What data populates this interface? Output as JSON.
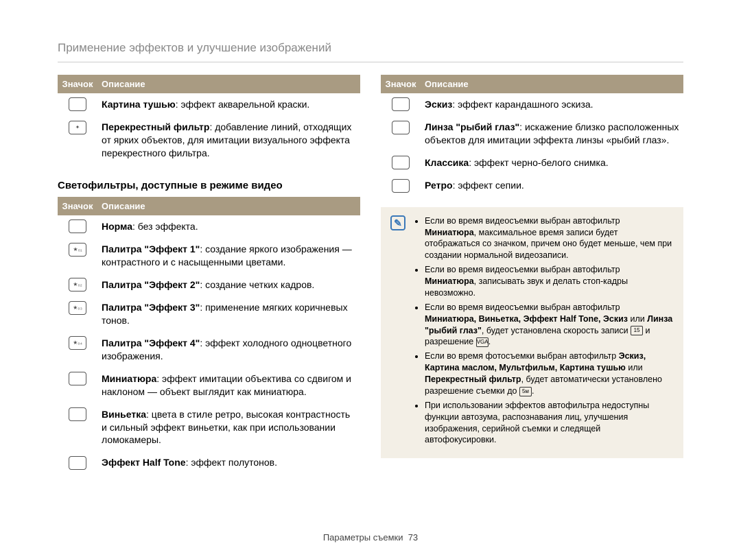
{
  "page_title": "Применение эффектов и улучшение изображений",
  "header_icon": "Значок",
  "header_desc": "Описание",
  "sub_heading": "Светофильтры, доступные в режиме видео",
  "table1": {
    "rows": [
      {
        "term": "Картина тушью",
        "desc": ": эффект акварельной краски."
      },
      {
        "term": "Перекрестный фильтр",
        "desc": ": добавление линий, отходящих от ярких объектов, для имитации визуального эффекта перекрестного фильтра."
      }
    ]
  },
  "table2": {
    "rows": [
      {
        "term": "Норма",
        "desc": ": без эффекта."
      },
      {
        "term": "Палитра \"Эффект 1\"",
        "desc": ": создание яркого изображения — контрастного и с насыщенными цветами."
      },
      {
        "term": "Палитра \"Эффект 2\"",
        "desc": ": создание четких кадров."
      },
      {
        "term": "Палитра \"Эффект 3\"",
        "desc": ": применение мягких коричневых тонов."
      },
      {
        "term": "Палитра \"Эффект 4\"",
        "desc": ": эффект холодного одноцветного изображения."
      },
      {
        "term": "Миниатюра",
        "desc": ": эффект имитации объектива со сдвигом и наклоном — объект выглядит как миниатюра."
      },
      {
        "term": "Виньетка",
        "desc": ": цвета в стиле ретро, высокая контрастность и сильный эффект виньетки, как при использовании ломокамеры."
      },
      {
        "term": "Эффект Half Tone",
        "desc": ": эффект полутонов."
      }
    ]
  },
  "table3": {
    "rows": [
      {
        "term": "Эскиз",
        "desc": ": эффект карандашного эскиза."
      },
      {
        "term": "Линза \"рыбий глаз\"",
        "desc": ": искажение близко расположенных объектов для имитации эффекта линзы «рыбий глаз»."
      },
      {
        "term": "Классика",
        "desc": ": эффект черно-белого снимка."
      },
      {
        "term": "Ретро",
        "desc": ": эффект сепии."
      }
    ]
  },
  "notes": {
    "items": [
      {
        "pre": "Если во время видеосъемки выбран автофильтр ",
        "b1": "Миниатюра",
        "post": ", максимальное время записи будет отображаться со значком, причем оно будет меньше, чем при создании нормальной видеозаписи."
      },
      {
        "pre": "Если во время видеосъемки выбран автофильтр ",
        "b1": "Миниатюра",
        "post": ", записывать звук и делать стоп-кадры невозможно."
      },
      {
        "pre": "Если во время видеосъемки выбран автофильтр ",
        "b1": "Миниатюра, Виньетка, Эффект Half Tone, Эскиз",
        "mid": " или ",
        "b2": "Линза \"рыбий глаз\"",
        "post": ", будет установлена скорость записи ",
        "post2": " и разрешение ",
        "post3": "."
      },
      {
        "pre": "Если во время фотосъемки выбран автофильтр ",
        "b1": "Эскиз, Картина маслом, Мультфильм, Картина тушью",
        "mid": " или ",
        "b2": "Перекрестный фильтр",
        "post": ", будет автоматически установлено разрешение съемки до ",
        "post3": "."
      },
      {
        "pre": "При использовании эффектов автофильтра недоступны функции автозума, распознавания лиц, улучшения изображения, серийной съемки и следящей автофокусировки."
      }
    ]
  },
  "footer_label": "Параметры съемки",
  "footer_page": "73",
  "colors": {
    "header_bg": "#a99b82",
    "header_fg": "#ffffff",
    "note_bg": "#f3efe6",
    "note_icon": "#3a78b8",
    "title_fg": "#888888"
  }
}
